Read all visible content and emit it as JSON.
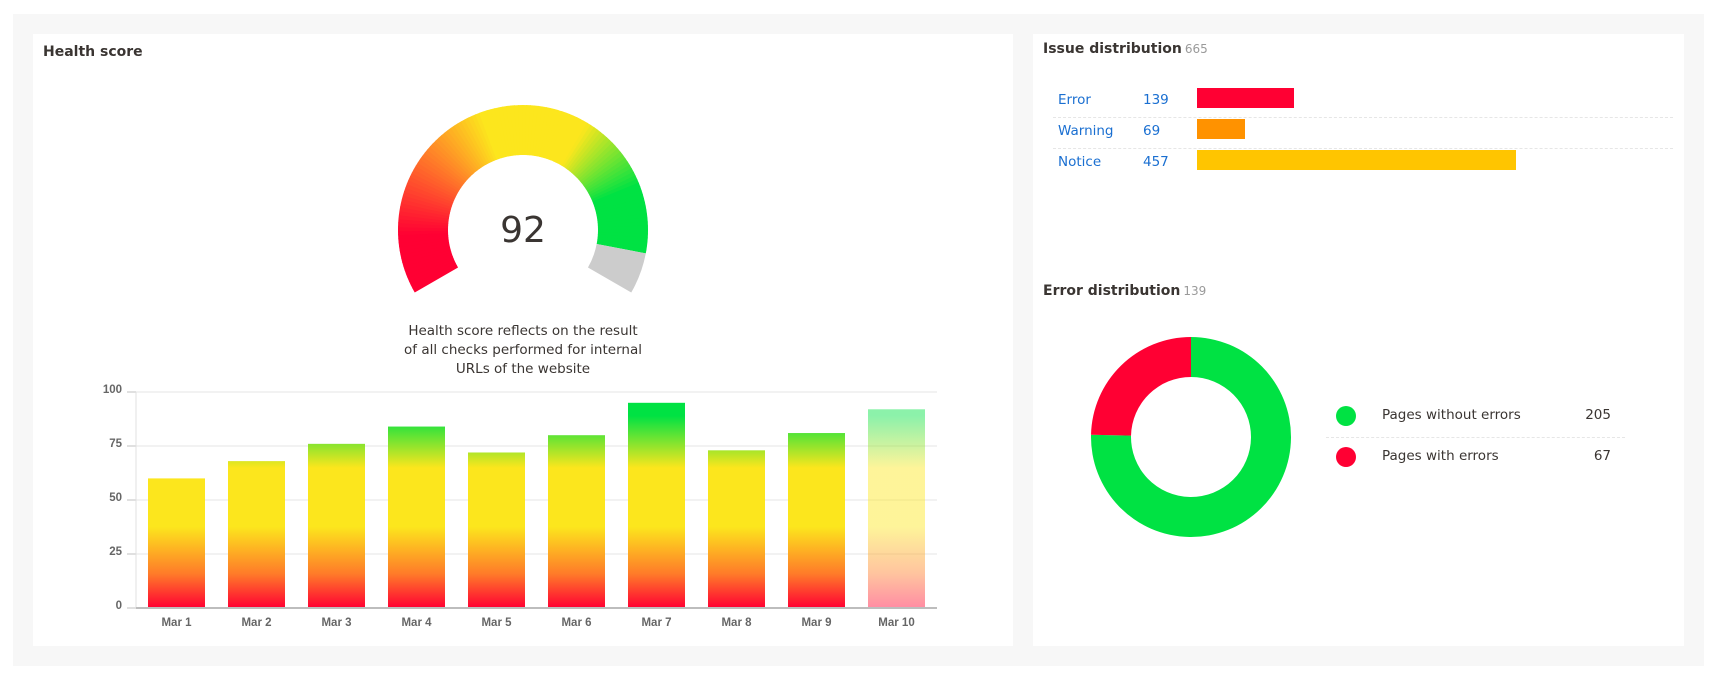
{
  "health": {
    "title": "Health score",
    "score": "92",
    "score_value": 92,
    "caption": "Health score reflects on the result of all checks performed for internal URLs of the website",
    "colors": {
      "red": "#ff0033",
      "orange": "#ff7a29",
      "yellow": "#fce61d",
      "green": "#00e243",
      "empty": "#cccccc"
    }
  },
  "issue_distribution": {
    "title": "Issue distribution",
    "total": "665",
    "rows": [
      {
        "label": "Error",
        "value": "139",
        "color": "#ff0033"
      },
      {
        "label": "Warning",
        "value": "69",
        "color": "#ff9200"
      },
      {
        "label": "Notice",
        "value": "457",
        "color": "#ffc500"
      }
    ]
  },
  "error_distribution": {
    "title": "Error distribution",
    "total": "139",
    "legend": [
      {
        "label": "Pages without errors",
        "value": "205",
        "color": "#00e243"
      },
      {
        "label": "Pages with errors",
        "value": "67",
        "color": "#ff0033"
      }
    ]
  },
  "chart_data": [
    {
      "type": "gauge",
      "title": "Health score",
      "value": 92,
      "range": [
        0,
        100
      ]
    },
    {
      "type": "bar",
      "title": "Health score history",
      "categories": [
        "Mar 1",
        "Mar 2",
        "Mar 3",
        "Mar 4",
        "Mar 5",
        "Mar 6",
        "Mar 7",
        "Mar 8",
        "Mar 9",
        "Mar 10"
      ],
      "values": [
        60,
        68,
        76,
        84,
        72,
        80,
        95,
        73,
        81,
        92
      ],
      "yticks": [
        "0",
        "25",
        "50",
        "75",
        "100"
      ],
      "ylim": [
        0,
        100
      ],
      "xlabel": "",
      "ylabel": "",
      "grid": true,
      "note": "Last bar (Mar 10) rendered semi-transparent"
    },
    {
      "type": "bar",
      "orientation": "horizontal",
      "title": "Issue distribution",
      "categories": [
        "Error",
        "Warning",
        "Notice"
      ],
      "values": [
        139,
        69,
        457
      ],
      "total": 665
    },
    {
      "type": "pie",
      "style": "donut",
      "title": "Error distribution",
      "categories": [
        "Pages without errors",
        "Pages with errors"
      ],
      "values": [
        205,
        67
      ],
      "total": 139
    }
  ]
}
